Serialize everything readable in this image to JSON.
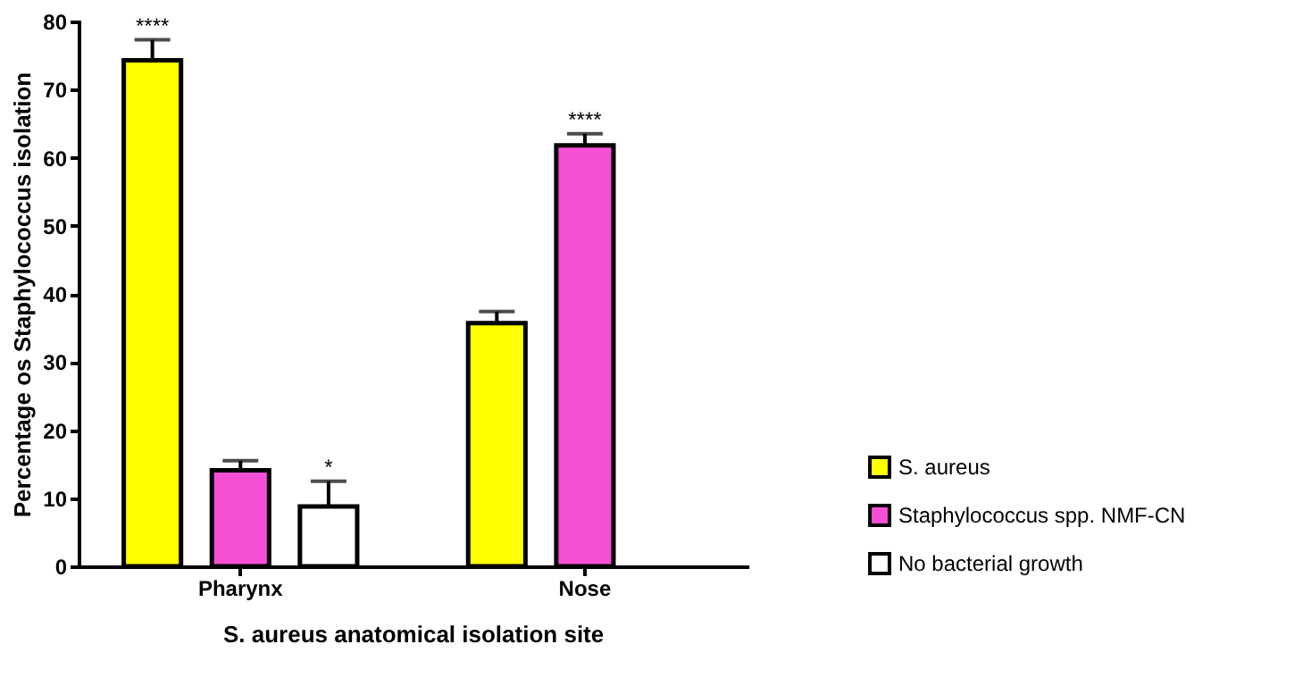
{
  "chart_data": {
    "type": "bar",
    "ylabel": "Percentage os Staphylococcus isolation",
    "xlabel": "S. aureus anatomical isolation site",
    "categories": [
      "Pharynx",
      "Nose"
    ],
    "series": [
      {
        "name": "S. aureus",
        "color": "#ffff00",
        "values": [
          74.3,
          35.7
        ],
        "value_labels": [
          "****",
          null
        ],
        "errors": [
          [
            74.3,
            77.3
          ],
          [
            35.7,
            37.4
          ]
        ]
      },
      {
        "name": "Staphylococcus spp. NMF-CN",
        "color": "#f54fd6",
        "values": [
          14.1,
          61.8
        ],
        "value_labels": [
          null,
          "****"
        ],
        "errors": [
          [
            14.1,
            15.5
          ],
          [
            61.8,
            63.5
          ]
        ]
      },
      {
        "name": "No bacterial growth",
        "color": "#ffffff",
        "values": [
          8.8,
          null
        ],
        "value_labels": [
          "*",
          null
        ],
        "errors": [
          [
            8.8,
            12.5
          ],
          null
        ]
      }
    ],
    "ylim": [
      0,
      80
    ],
    "yticks": [
      0,
      10,
      20,
      30,
      40,
      50,
      60,
      70,
      80
    ],
    "grid": false,
    "legend": "bottom right"
  }
}
